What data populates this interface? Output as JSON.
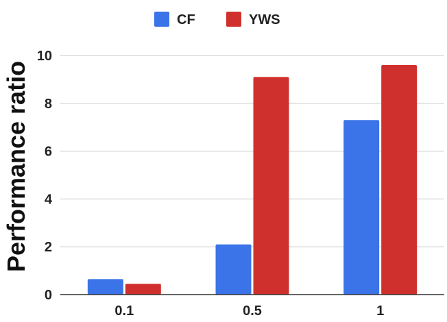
{
  "chart_data": {
    "type": "bar",
    "categories": [
      "0.1",
      "0.5",
      "1"
    ],
    "series": [
      {
        "name": "CF",
        "color": "#3b73e8",
        "values": [
          0.65,
          2.1,
          7.3
        ]
      },
      {
        "name": "YWS",
        "color": "#d0302d",
        "values": [
          0.45,
          9.1,
          9.6
        ]
      }
    ],
    "ylabel": "Performance ratio",
    "xlabel": "",
    "ylim": [
      0,
      10
    ],
    "yticks": [
      0,
      2,
      4,
      6,
      8,
      10
    ],
    "grid": true,
    "legend_position": "top-center"
  }
}
